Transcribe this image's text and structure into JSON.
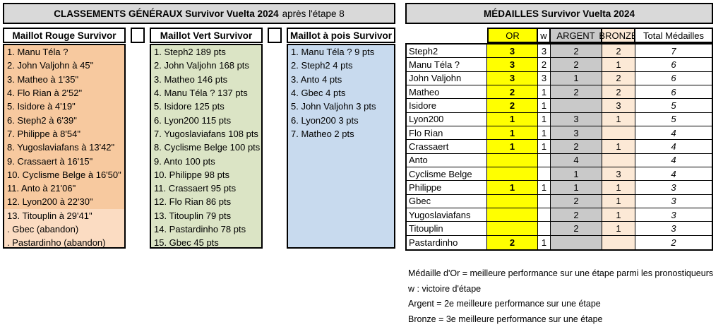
{
  "left": {
    "title_bold": "CLASSEMENTS GÉNÉRAUX Survivor Vuelta 2024",
    "title_tail": "après l'étape 8",
    "rouge": {
      "header": "Maillot Rouge Survivor",
      "rows": [
        "1. Manu Téla ?",
        "2. John Valjohn à 45\"",
        "3. Matheo à 1'35\"",
        "4. Flo Rian à 2'52\"",
        "5. Isidore à 4'19\"",
        "6. Steph2 à 6'39\"",
        "7. Philippe à 8'54\"",
        "8. Yugoslaviafans à 13'42\"",
        "9. Crassaert à 16'15\"",
        "10. Cyclisme Belge à 16'50\"",
        "11. Anto à 21'06\"",
        "12. Lyon200 à 22'30\"",
        "13. Titouplin à 29'41\"",
        ". Gbec (abandon)",
        ". Pastardinho (abandon)"
      ]
    },
    "vert": {
      "header": "Maillot Vert Survivor",
      "rows": [
        "1. Steph2 189 pts",
        "2. John Valjohn 168 pts",
        "3. Matheo 146 pts",
        "4. Manu Téla ? 137 pts",
        "5. Isidore 125 pts",
        "6. Lyon200 115 pts",
        "7. Yugoslaviafans 108 pts",
        "8. Cyclisme Belge 100 pts",
        "9. Anto 100 pts",
        "10. Philippe 98 pts",
        "11. Crassaert 95 pts",
        "12. Flo Rian 86 pts",
        "13. Titouplin 79 pts",
        "14. Pastardinho 78 pts",
        "15. Gbec 45 pts"
      ]
    },
    "pois": {
      "header": "Maillot à pois Survivor",
      "rows": [
        "1. Manu Téla ? 9 pts",
        "2. Steph2 4 pts",
        "3. Anto 4 pts",
        "4. Gbec 4 pts",
        "5. John Valjohn 3 pts",
        "6. Lyon200 3 pts",
        "7. Matheo 2 pts"
      ]
    }
  },
  "medals": {
    "title": "MÉDAILLES Survivor Vuelta 2024",
    "headers": {
      "or": "OR",
      "w": "w",
      "argent": "ARGENT",
      "bronze": "BRONZE",
      "total": "Total Médailles"
    },
    "rows": [
      {
        "name": "Steph2",
        "or": "3",
        "w": "3",
        "argent": "2",
        "bronze": "2",
        "total": "7"
      },
      {
        "name": "Manu Téla ?",
        "or": "3",
        "w": "2",
        "argent": "2",
        "bronze": "1",
        "total": "6"
      },
      {
        "name": "John Valjohn",
        "or": "3",
        "w": "3",
        "argent": "1",
        "bronze": "2",
        "total": "6"
      },
      {
        "name": "Matheo",
        "or": "2",
        "w": "1",
        "argent": "2",
        "bronze": "2",
        "total": "6"
      },
      {
        "name": "Isidore",
        "or": "2",
        "w": "1",
        "argent": "",
        "bronze": "3",
        "total": "5"
      },
      {
        "name": "Lyon200",
        "or": "1",
        "w": "1",
        "argent": "3",
        "bronze": "1",
        "total": "5"
      },
      {
        "name": "Flo Rian",
        "or": "1",
        "w": "1",
        "argent": "3",
        "bronze": "",
        "total": "4"
      },
      {
        "name": "Crassaert",
        "or": "1",
        "w": "1",
        "argent": "2",
        "bronze": "1",
        "total": "4"
      },
      {
        "name": "Anto",
        "or": "",
        "w": "",
        "argent": "4",
        "bronze": "",
        "total": "4"
      },
      {
        "name": "Cyclisme Belge",
        "or": "",
        "w": "",
        "argent": "1",
        "bronze": "3",
        "total": "4"
      },
      {
        "name": "Philippe",
        "or": "1",
        "w": "1",
        "argent": "1",
        "bronze": "1",
        "total": "3"
      },
      {
        "name": "Gbec",
        "or": "",
        "w": "",
        "argent": "2",
        "bronze": "1",
        "total": "3"
      },
      {
        "name": "Yugoslaviafans",
        "or": "",
        "w": "",
        "argent": "2",
        "bronze": "1",
        "total": "3"
      },
      {
        "name": "Titouplin",
        "or": "",
        "w": "",
        "argent": "2",
        "bronze": "1",
        "total": "3"
      },
      {
        "name": "Pastardinho",
        "or": "2",
        "w": "1",
        "argent": "",
        "bronze": "",
        "total": "2"
      }
    ]
  },
  "footnotes": [
    "Médaille d'Or = meilleure performance sur une étape parmi les pronostiqueurs",
    "w : victoire d'étape",
    "Argent = 2e meilleure performance sur une étape",
    "Bronze = 3e meilleure performance sur une étape"
  ],
  "colors": {
    "title_bg": "#D9D9D9",
    "rouge_main": "#F7C99F",
    "rouge_light": "#FBDCC2",
    "vert": "#DBE4C5",
    "pois": "#C8DAEE",
    "or": "#FFFF00",
    "argent": "#C9C9C9",
    "bronze": "#FCE9D6"
  }
}
